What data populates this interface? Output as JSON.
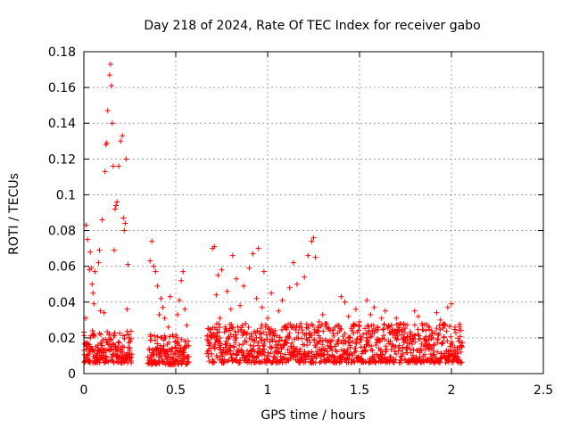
{
  "chart_data": {
    "type": "scatter",
    "title": "Day 218 of 2024, Rate Of TEC Index for receiver gabo",
    "xlabel": "GPS time / hours",
    "ylabel": "ROTI / TECUs",
    "xlim": [
      0,
      2.5
    ],
    "ylim": [
      0,
      0.18
    ],
    "x_ticks": [
      "0",
      "0.5",
      "1",
      "1.5",
      "2",
      "2.5"
    ],
    "y_ticks": [
      "0",
      "0.02",
      "0.04",
      "0.06",
      "0.08",
      "0.1",
      "0.12",
      "0.14",
      "0.16",
      "0.18"
    ],
    "grid": true,
    "marker": "plus",
    "color": "#ff0000",
    "points": [
      [
        0.0,
        0.013
      ],
      [
        0.01,
        0.031
      ],
      [
        0.012,
        0.083
      ],
      [
        0.02,
        0.075
      ],
      [
        0.025,
        0.011
      ],
      [
        0.03,
        0.058
      ],
      [
        0.035,
        0.068
      ],
      [
        0.04,
        0.059
      ],
      [
        0.045,
        0.05
      ],
      [
        0.05,
        0.045
      ],
      [
        0.055,
        0.039
      ],
      [
        0.06,
        0.057
      ],
      [
        0.065,
        0.015
      ],
      [
        0.07,
        0.009
      ],
      [
        0.08,
        0.062
      ],
      [
        0.085,
        0.069
      ],
      [
        0.09,
        0.035
      ],
      [
        0.1,
        0.086
      ],
      [
        0.11,
        0.034
      ],
      [
        0.115,
        0.113
      ],
      [
        0.12,
        0.128
      ],
      [
        0.125,
        0.129
      ],
      [
        0.13,
        0.147
      ],
      [
        0.14,
        0.167
      ],
      [
        0.145,
        0.173
      ],
      [
        0.15,
        0.161
      ],
      [
        0.155,
        0.14
      ],
      [
        0.16,
        0.116
      ],
      [
        0.165,
        0.069
      ],
      [
        0.17,
        0.092
      ],
      [
        0.175,
        0.094
      ],
      [
        0.18,
        0.096
      ],
      [
        0.19,
        0.116
      ],
      [
        0.2,
        0.13
      ],
      [
        0.21,
        0.133
      ],
      [
        0.215,
        0.087
      ],
      [
        0.22,
        0.08
      ],
      [
        0.225,
        0.084
      ],
      [
        0.23,
        0.12
      ],
      [
        0.235,
        0.036
      ],
      [
        0.24,
        0.061
      ],
      [
        0.245,
        0.02
      ],
      [
        0.25,
        0.013
      ],
      [
        0.36,
        0.063
      ],
      [
        0.37,
        0.074
      ],
      [
        0.38,
        0.06
      ],
      [
        0.39,
        0.057
      ],
      [
        0.4,
        0.049
      ],
      [
        0.41,
        0.033
      ],
      [
        0.42,
        0.042
      ],
      [
        0.43,
        0.037
      ],
      [
        0.44,
        0.031
      ],
      [
        0.45,
        0.012
      ],
      [
        0.46,
        0.026
      ],
      [
        0.47,
        0.043
      ],
      [
        0.48,
        0.014
      ],
      [
        0.5,
        0.018
      ],
      [
        0.51,
        0.033
      ],
      [
        0.52,
        0.041
      ],
      [
        0.53,
        0.052
      ],
      [
        0.54,
        0.057
      ],
      [
        0.55,
        0.036
      ],
      [
        0.56,
        0.027
      ],
      [
        0.67,
        0.021
      ],
      [
        0.68,
        0.013
      ],
      [
        0.7,
        0.07
      ],
      [
        0.71,
        0.071
      ],
      [
        0.72,
        0.044
      ],
      [
        0.73,
        0.055
      ],
      [
        0.74,
        0.031
      ],
      [
        0.75,
        0.058
      ],
      [
        0.78,
        0.046
      ],
      [
        0.8,
        0.036
      ],
      [
        0.81,
        0.066
      ],
      [
        0.83,
        0.053
      ],
      [
        0.85,
        0.038
      ],
      [
        0.87,
        0.049
      ],
      [
        0.88,
        0.028
      ],
      [
        0.9,
        0.059
      ],
      [
        0.92,
        0.067
      ],
      [
        0.94,
        0.042
      ],
      [
        0.95,
        0.07
      ],
      [
        0.97,
        0.037
      ],
      [
        0.98,
        0.057
      ],
      [
        1.0,
        0.031
      ],
      [
        1.02,
        0.045
      ],
      [
        1.04,
        0.024
      ],
      [
        1.06,
        0.035
      ],
      [
        1.08,
        0.041
      ],
      [
        1.1,
        0.018
      ],
      [
        1.12,
        0.048
      ],
      [
        1.14,
        0.062
      ],
      [
        1.16,
        0.05
      ],
      [
        1.18,
        0.028
      ],
      [
        1.2,
        0.054
      ],
      [
        1.22,
        0.066
      ],
      [
        1.24,
        0.074
      ],
      [
        1.25,
        0.076
      ],
      [
        1.26,
        0.065
      ],
      [
        1.28,
        0.029
      ],
      [
        1.3,
        0.033
      ],
      [
        1.32,
        0.026
      ],
      [
        1.34,
        0.024
      ],
      [
        1.36,
        0.021
      ],
      [
        1.38,
        0.018
      ],
      [
        1.4,
        0.043
      ],
      [
        1.42,
        0.04
      ],
      [
        1.44,
        0.032
      ],
      [
        1.46,
        0.024
      ],
      [
        1.48,
        0.036
      ],
      [
        1.5,
        0.029
      ],
      [
        1.52,
        0.022
      ],
      [
        1.54,
        0.041
      ],
      [
        1.56,
        0.033
      ],
      [
        1.58,
        0.037
      ],
      [
        1.6,
        0.026
      ],
      [
        1.62,
        0.031
      ],
      [
        1.64,
        0.035
      ],
      [
        1.66,
        0.027
      ],
      [
        1.68,
        0.022
      ],
      [
        1.7,
        0.031
      ],
      [
        1.72,
        0.028
      ],
      [
        1.74,
        0.02
      ],
      [
        1.76,
        0.017
      ],
      [
        1.78,
        0.022
      ],
      [
        1.8,
        0.035
      ],
      [
        1.82,
        0.032
      ],
      [
        1.84,
        0.028
      ],
      [
        1.86,
        0.019
      ],
      [
        1.88,
        0.026
      ],
      [
        1.9,
        0.02
      ],
      [
        1.92,
        0.034
      ],
      [
        1.94,
        0.03
      ],
      [
        1.96,
        0.027
      ],
      [
        1.98,
        0.037
      ],
      [
        2.0,
        0.039
      ],
      [
        2.02,
        0.026
      ],
      [
        2.04,
        0.018
      ],
      [
        2.05,
        0.012
      ]
    ],
    "bands": [
      {
        "x_start": 0.0,
        "x_end": 0.26,
        "y_low": 0.006,
        "y_high": 0.024
      },
      {
        "x_start": 0.35,
        "x_end": 0.57,
        "y_low": 0.005,
        "y_high": 0.022
      },
      {
        "x_start": 0.67,
        "x_end": 2.06,
        "y_low": 0.006,
        "y_high": 0.028
      }
    ]
  }
}
